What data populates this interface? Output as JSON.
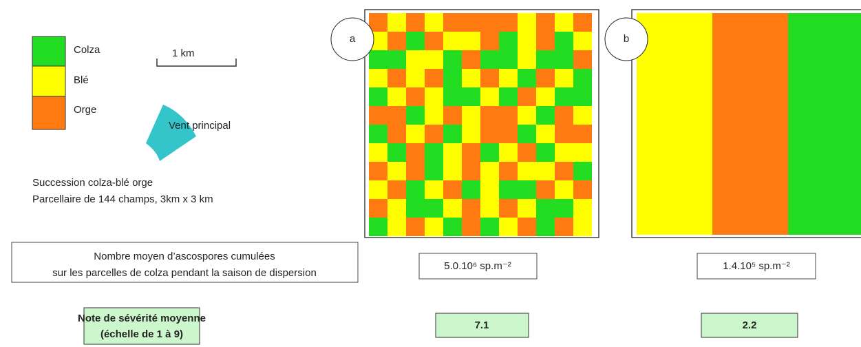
{
  "legend": {
    "items": [
      "Colza",
      "Blé",
      "Orge"
    ]
  },
  "scale": "1 km",
  "wind": "Vent principal",
  "caption": [
    "Succession colza-blé orge",
    "Parcellaire de 144 champs, 3km x 3 km"
  ],
  "panels": [
    {
      "label": "a",
      "ascospores": "5.0.10⁶ sp.m⁻²",
      "severity": "7.1"
    },
    {
      "label": "b",
      "ascospores": "1.4.10⁵ sp.m⁻²",
      "severity": "2.2"
    }
  ],
  "ascospores_label": [
    "Nombre moyen d’ascospores cumulées",
    "sur les parcelles de colza pendant la saison de dispersion"
  ],
  "severity_label": [
    "Note de sévérité moyenne",
    "(échelle de 1 à 9)"
  ]
}
